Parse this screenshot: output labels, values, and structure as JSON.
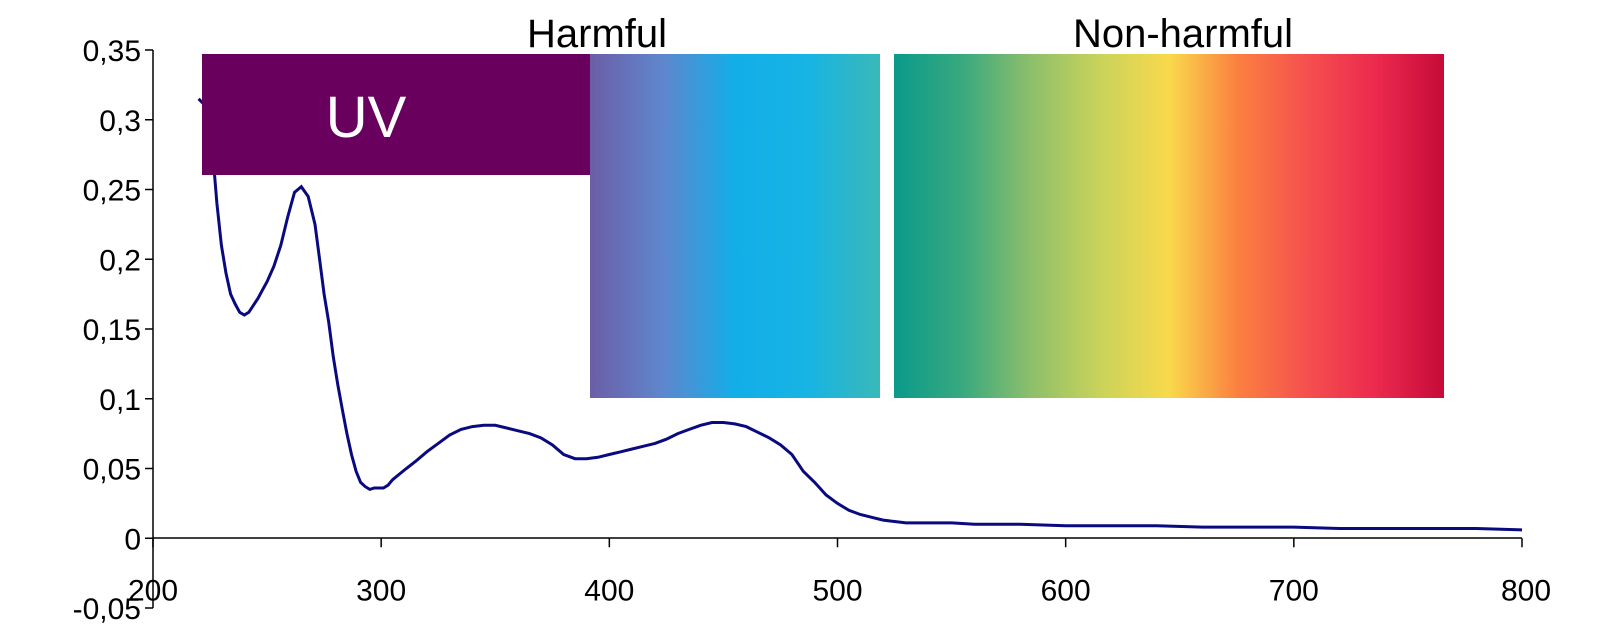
{
  "chart_data": {
    "type": "line",
    "title": "",
    "xlabel": "",
    "ylabel": "",
    "xlim": [
      200,
      800
    ],
    "ylim": [
      -0.05,
      0.35
    ],
    "x_ticks": [
      200,
      300,
      400,
      500,
      600,
      700,
      800
    ],
    "y_ticks": [
      -0.05,
      0,
      0.05,
      0.1,
      0.15,
      0.2,
      0.25,
      0.3,
      0.35
    ],
    "x_tick_labels": [
      "200",
      "300",
      "400",
      "500",
      "600",
      "700",
      "800"
    ],
    "y_tick_labels": [
      "-0,05",
      "0",
      "0,05",
      "0,1",
      "0,15",
      "0,2",
      "0,25",
      "0,3",
      "0,35"
    ],
    "grid": false,
    "series": [
      {
        "color": "#0a0a80",
        "x": [
          220,
          223,
          226,
          228,
          230,
          232,
          234,
          236,
          238,
          240,
          242,
          244,
          246,
          248,
          250,
          253,
          256,
          259,
          262,
          265,
          268,
          271,
          273,
          275,
          277,
          279,
          281,
          283,
          285,
          287,
          289,
          291,
          293,
          295,
          297,
          299,
          301,
          303,
          305,
          308,
          311,
          315,
          320,
          325,
          330,
          335,
          340,
          345,
          350,
          355,
          360,
          365,
          370,
          375,
          380,
          385,
          390,
          395,
          400,
          405,
          410,
          415,
          420,
          425,
          430,
          435,
          440,
          445,
          450,
          455,
          460,
          465,
          470,
          475,
          480,
          485,
          490,
          495,
          500,
          505,
          510,
          515,
          520,
          525,
          530,
          540,
          550,
          560,
          570,
          580,
          600,
          620,
          640,
          660,
          680,
          700,
          720,
          740,
          760,
          780,
          800
        ],
        "y": [
          0.315,
          0.31,
          0.28,
          0.24,
          0.21,
          0.19,
          0.175,
          0.168,
          0.162,
          0.16,
          0.162,
          0.167,
          0.172,
          0.178,
          0.184,
          0.195,
          0.21,
          0.23,
          0.248,
          0.252,
          0.245,
          0.225,
          0.2,
          0.175,
          0.155,
          0.13,
          0.11,
          0.092,
          0.075,
          0.06,
          0.048,
          0.04,
          0.037,
          0.035,
          0.036,
          0.036,
          0.036,
          0.038,
          0.042,
          0.046,
          0.05,
          0.055,
          0.062,
          0.068,
          0.074,
          0.078,
          0.08,
          0.081,
          0.081,
          0.079,
          0.077,
          0.075,
          0.072,
          0.067,
          0.06,
          0.057,
          0.057,
          0.058,
          0.06,
          0.062,
          0.064,
          0.066,
          0.068,
          0.071,
          0.075,
          0.078,
          0.081,
          0.083,
          0.083,
          0.082,
          0.08,
          0.076,
          0.072,
          0.067,
          0.06,
          0.048,
          0.04,
          0.031,
          0.025,
          0.02,
          0.017,
          0.015,
          0.013,
          0.012,
          0.011,
          0.011,
          0.011,
          0.01,
          0.01,
          0.01,
          0.009,
          0.009,
          0.009,
          0.008,
          0.008,
          0.008,
          0.007,
          0.007,
          0.007,
          0.007,
          0.006
        ]
      }
    ],
    "annotations": {
      "uv_label": "UV",
      "harmful_label": "Harmful",
      "non_harmful_label": "Non-harmful",
      "uv_color": "#6a005e",
      "harmful_gradient": [
        "#6b5ea6",
        "#5f86cd",
        "#12aee8",
        "#17b4e4",
        "#3ab8b8"
      ],
      "non_harmful_gradient": [
        "#0a9a8a",
        "#39a97f",
        "#8ebf6b",
        "#c9d35a",
        "#f9d94c",
        "#fb8040",
        "#f5504e",
        "#ec2a4e",
        "#c60b39"
      ]
    }
  }
}
